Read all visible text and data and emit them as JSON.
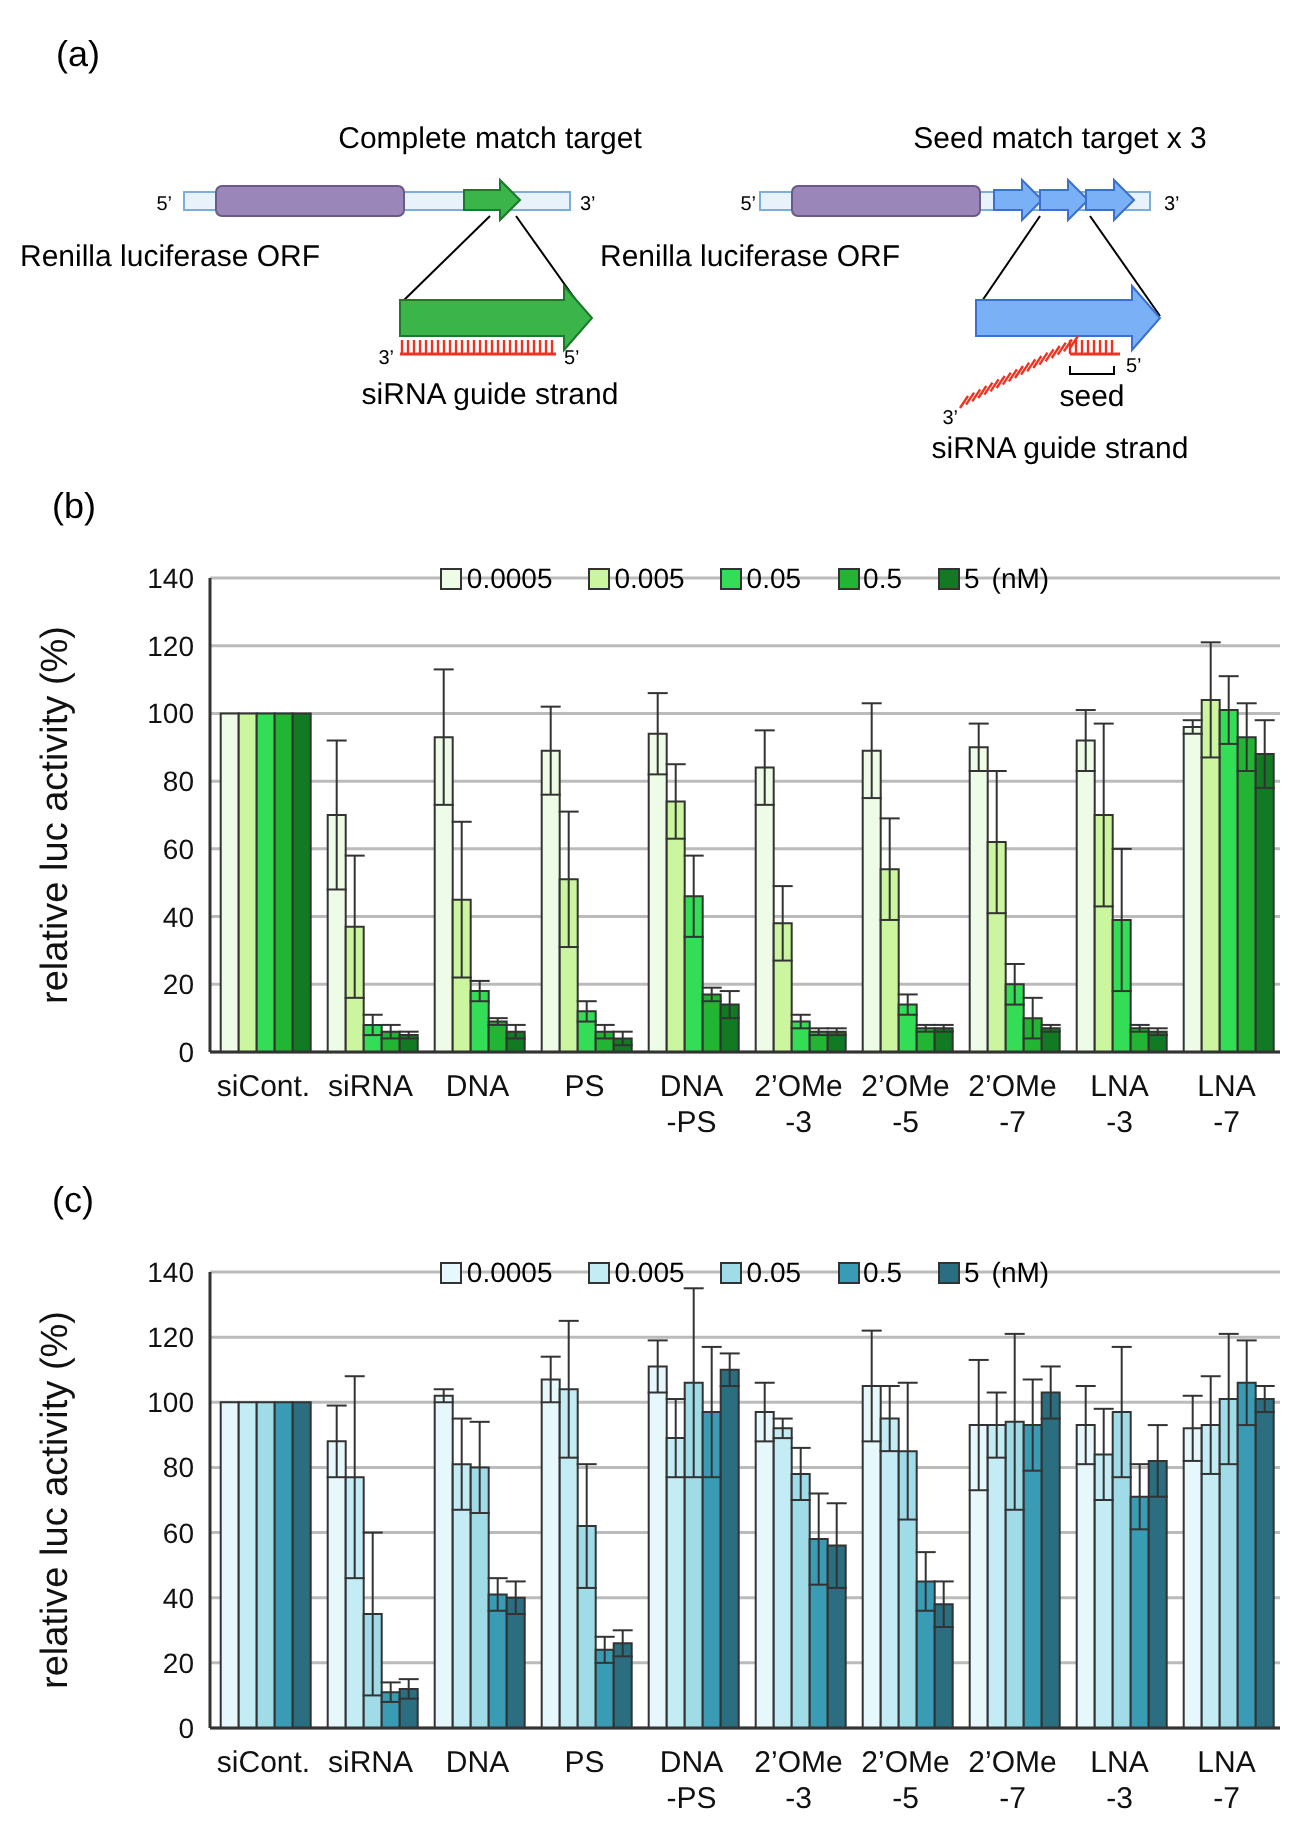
{
  "chart_data": [
    {
      "type": "other",
      "title": "(a)",
      "annotations": [
        "Complete match target",
        "5’",
        "3’",
        "Renilla luciferase ORF",
        "3’",
        "5’",
        "siRNA guide strand",
        "Seed match target x 3",
        "5’",
        "3’",
        "Renilla luciferase ORF",
        "5’",
        "seed",
        "3’",
        "siRNA guide strand"
      ]
    },
    {
      "type": "bar",
      "title": "(b)",
      "ylabel": "relative luc activity (%)",
      "legend_title": "(nM)",
      "categories": [
        "siCont.",
        "siRNA",
        "DNA",
        "PS",
        "DNA\n-PS",
        "2’OMe\n-3",
        "2’OMe\n-5",
        "2’OMe\n-7",
        "LNA\n-3",
        "LNA\n-7"
      ],
      "series": [
        {
          "name": "0.0005",
          "color": "#eefbe6",
          "values": [
            100,
            70,
            93,
            89,
            94,
            84,
            89,
            90,
            92,
            96
          ],
          "errors": [
            null,
            22,
            20,
            13,
            12,
            11,
            14,
            7,
            9,
            2
          ]
        },
        {
          "name": "0.005",
          "color": "#ccf5a0",
          "values": [
            100,
            37,
            45,
            51,
            74,
            38,
            54,
            62,
            70,
            104
          ],
          "errors": [
            null,
            21,
            23,
            20,
            11,
            11,
            15,
            21,
            27,
            17
          ]
        },
        {
          "name": "0.05",
          "color": "#33dd55",
          "values": [
            100,
            8,
            18,
            12,
            46,
            9,
            14,
            20,
            39,
            101
          ],
          "errors": [
            null,
            3,
            3,
            3,
            12,
            2,
            3,
            6,
            21,
            10
          ]
        },
        {
          "name": "0.5",
          "color": "#22b433",
          "values": [
            100,
            6,
            9,
            6,
            17,
            6,
            7,
            10,
            7,
            93
          ],
          "errors": [
            null,
            2,
            1,
            2,
            2,
            1,
            1,
            6,
            1,
            10
          ]
        },
        {
          "name": "5",
          "color": "#117a22",
          "values": [
            100,
            5,
            6,
            4,
            14,
            6,
            7,
            7,
            6,
            88
          ],
          "errors": [
            null,
            1,
            2,
            2,
            4,
            1,
            1,
            1,
            1,
            10
          ]
        }
      ],
      "ylim": [
        0,
        140
      ],
      "yticks": [
        0,
        20,
        40,
        60,
        80,
        100,
        120,
        140
      ],
      "grid": "y",
      "legend": "top"
    },
    {
      "type": "bar",
      "title": "(c)",
      "ylabel": "relative luc activity (%)",
      "legend_title": "(nM)",
      "categories": [
        "siCont.",
        "siRNA",
        "DNA",
        "PS",
        "DNA\n-PS",
        "2’OMe\n-3",
        "2’OMe\n-5",
        "2’OMe\n-7",
        "LNA\n-3",
        "LNA\n-7"
      ],
      "series": [
        {
          "name": "0.0005",
          "color": "#e6f8fc",
          "values": [
            100,
            88,
            102,
            107,
            111,
            97,
            105,
            93,
            93,
            92
          ],
          "errors": [
            null,
            11,
            2,
            7,
            8,
            9,
            17,
            20,
            12,
            10
          ]
        },
        {
          "name": "0.005",
          "color": "#c4ecf5",
          "values": [
            100,
            77,
            81,
            104,
            89,
            92,
            95,
            93,
            84,
            93
          ],
          "errors": [
            null,
            31,
            14,
            21,
            12,
            3,
            10,
            10,
            14,
            15
          ]
        },
        {
          "name": "0.05",
          "color": "#a0dbe8",
          "values": [
            100,
            35,
            80,
            62,
            106,
            78,
            85,
            94,
            97,
            101
          ],
          "errors": [
            null,
            25,
            14,
            19,
            29,
            8,
            21,
            27,
            20,
            20
          ]
        },
        {
          "name": "0.5",
          "color": "#3a9cb4",
          "values": [
            100,
            11,
            41,
            24,
            97,
            58,
            45,
            93,
            71,
            106
          ],
          "errors": [
            null,
            3,
            5,
            4,
            20,
            14,
            9,
            14,
            10,
            13
          ]
        },
        {
          "name": "5",
          "color": "#2a6e80",
          "values": [
            100,
            12,
            40,
            26,
            110,
            56,
            38,
            103,
            82,
            101
          ],
          "errors": [
            null,
            3,
            5,
            4,
            5,
            13,
            7,
            8,
            11,
            4
          ]
        }
      ],
      "ylim": [
        0,
        140
      ],
      "yticks": [
        0,
        20,
        40,
        60,
        80,
        100,
        120,
        140
      ],
      "grid": "y",
      "legend": "top"
    }
  ]
}
